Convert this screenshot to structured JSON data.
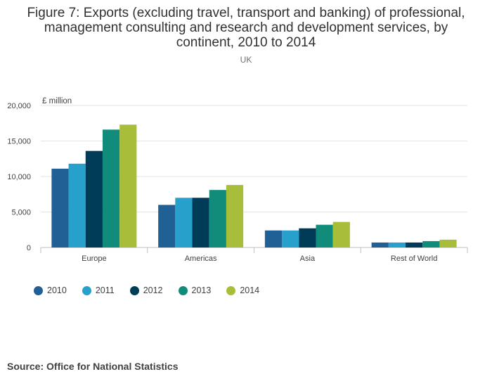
{
  "chart_data": {
    "type": "bar",
    "title_lines": [
      "Figure 7: Exports (excluding travel, transport and banking) of professional,",
      "management consulting and research and development services, by",
      "continent, 2010 to 2014"
    ],
    "subtitle": "UK",
    "ylabel": "£ million",
    "xlabel": "",
    "categories": [
      "Europe",
      "Americas",
      "Asia",
      "Rest of World"
    ],
    "ylim": [
      0,
      20000
    ],
    "yticks": [
      0,
      5000,
      10000,
      15000,
      20000
    ],
    "ytick_labels": [
      "0",
      "5,000",
      "10,000",
      "15,000",
      "20,000"
    ],
    "grid": true,
    "series": [
      {
        "name": "2010",
        "color": "#206095",
        "values": [
          11100,
          6000,
          2400,
          700
        ]
      },
      {
        "name": "2011",
        "color": "#27a0cc",
        "values": [
          11800,
          7000,
          2400,
          700
        ]
      },
      {
        "name": "2012",
        "color": "#003c57",
        "values": [
          13600,
          7000,
          2700,
          700
        ]
      },
      {
        "name": "2013",
        "color": "#118c7b",
        "values": [
          16600,
          8100,
          3200,
          900
        ]
      },
      {
        "name": "2014",
        "color": "#a8bd3a",
        "values": [
          17300,
          8800,
          3600,
          1100
        ]
      }
    ],
    "legend_position": "bottom-left"
  },
  "source": "Source: Office for National Statistics"
}
